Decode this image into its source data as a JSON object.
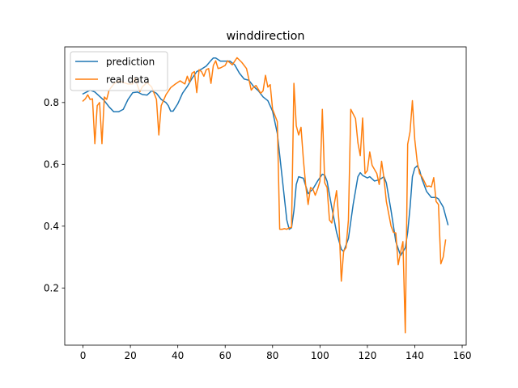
{
  "chart_data": {
    "type": "line",
    "title": "winddirection",
    "xlabel": "",
    "ylabel": "",
    "xlim": [
      -7.7,
      161.7
    ],
    "ylim": [
      0.015,
      0.98
    ],
    "xticks": [
      0,
      20,
      40,
      60,
      80,
      100,
      120,
      140,
      160
    ],
    "yticks": [
      0.2,
      0.4,
      0.6,
      0.8
    ],
    "xtick_labels": [
      "0",
      "20",
      "40",
      "60",
      "80",
      "100",
      "120",
      "140",
      "160"
    ],
    "ytick_labels": [
      "0.2",
      "0.4",
      "0.6",
      "0.8"
    ],
    "grid": false,
    "legend_position": "upper-left",
    "series": [
      {
        "name": "prediction",
        "color": "#1f77b4",
        "points": [
          [
            0,
            0.828
          ],
          [
            3,
            0.84
          ],
          [
            5,
            0.834
          ],
          [
            7,
            0.82
          ],
          [
            9,
            0.806
          ],
          [
            11,
            0.786
          ],
          [
            13,
            0.77
          ],
          [
            15,
            0.77
          ],
          [
            17,
            0.778
          ],
          [
            19,
            0.81
          ],
          [
            21,
            0.832
          ],
          [
            23,
            0.834
          ],
          [
            25,
            0.826
          ],
          [
            27,
            0.824
          ],
          [
            29,
            0.838
          ],
          [
            31,
            0.83
          ],
          [
            33,
            0.81
          ],
          [
            35,
            0.8
          ],
          [
            36,
            0.79
          ],
          [
            37,
            0.772
          ],
          [
            38,
            0.772
          ],
          [
            40,
            0.796
          ],
          [
            42,
            0.83
          ],
          [
            44,
            0.852
          ],
          [
            46,
            0.878
          ],
          [
            48,
            0.9
          ],
          [
            50,
            0.908
          ],
          [
            52,
            0.918
          ],
          [
            54,
            0.936
          ],
          [
            55,
            0.944
          ],
          [
            56,
            0.944
          ],
          [
            58,
            0.934
          ],
          [
            60,
            0.934
          ],
          [
            62,
            0.934
          ],
          [
            64,
            0.922
          ],
          [
            66,
            0.895
          ],
          [
            68,
            0.876
          ],
          [
            70,
            0.872
          ],
          [
            72,
            0.852
          ],
          [
            74,
            0.838
          ],
          [
            76,
            0.818
          ],
          [
            78,
            0.806
          ],
          [
            80,
            0.772
          ],
          [
            82,
            0.7
          ],
          [
            84,
            0.56
          ],
          [
            86,
            0.42
          ],
          [
            87,
            0.39
          ],
          [
            88,
            0.395
          ],
          [
            89,
            0.45
          ],
          [
            90,
            0.535
          ],
          [
            91,
            0.56
          ],
          [
            93,
            0.555
          ],
          [
            95,
            0.505
          ],
          [
            97,
            0.52
          ],
          [
            99,
            0.546
          ],
          [
            101,
            0.568
          ],
          [
            102,
            0.565
          ],
          [
            103,
            0.545
          ],
          [
            105,
            0.46
          ],
          [
            107,
            0.38
          ],
          [
            109,
            0.325
          ],
          [
            110,
            0.318
          ],
          [
            112,
            0.36
          ],
          [
            114,
            0.47
          ],
          [
            116,
            0.56
          ],
          [
            117,
            0.573
          ],
          [
            118,
            0.564
          ],
          [
            120,
            0.556
          ],
          [
            121,
            0.56
          ],
          [
            123,
            0.546
          ],
          [
            125,
            0.55
          ],
          [
            127,
            0.56
          ],
          [
            128,
            0.54
          ],
          [
            130,
            0.45
          ],
          [
            132,
            0.35
          ],
          [
            134,
            0.305
          ],
          [
            136,
            0.33
          ],
          [
            137,
            0.38
          ],
          [
            138,
            0.46
          ],
          [
            139,
            0.56
          ],
          [
            140,
            0.588
          ],
          [
            141,
            0.595
          ],
          [
            142,
            0.582
          ],
          [
            143,
            0.553
          ],
          [
            145,
            0.512
          ],
          [
            147,
            0.493
          ],
          [
            149,
            0.493
          ],
          [
            150,
            0.488
          ],
          [
            152,
            0.462
          ],
          [
            154,
            0.405
          ]
        ]
      },
      {
        "name": "real data",
        "color": "#ff7f0e",
        "points": [
          [
            0,
            0.805
          ],
          [
            1,
            0.812
          ],
          [
            2,
            0.825
          ],
          [
            3,
            0.81
          ],
          [
            4,
            0.812
          ],
          [
            5,
            0.667
          ],
          [
            6,
            0.79
          ],
          [
            7,
            0.8
          ],
          [
            8,
            0.667
          ],
          [
            9,
            0.818
          ],
          [
            10,
            0.81
          ],
          [
            11,
            0.84
          ],
          [
            13,
            0.86
          ],
          [
            15,
            0.87
          ],
          [
            17,
            0.865
          ],
          [
            19,
            0.86
          ],
          [
            21,
            0.86
          ],
          [
            22,
            0.88
          ],
          [
            23,
            0.855
          ],
          [
            24,
            0.835
          ],
          [
            25,
            0.85
          ],
          [
            27,
            0.865
          ],
          [
            29,
            0.85
          ],
          [
            31,
            0.81
          ],
          [
            32,
            0.695
          ],
          [
            33,
            0.79
          ],
          [
            35,
            0.825
          ],
          [
            37,
            0.848
          ],
          [
            39,
            0.86
          ],
          [
            41,
            0.87
          ],
          [
            43,
            0.86
          ],
          [
            44,
            0.885
          ],
          [
            45,
            0.865
          ],
          [
            46,
            0.895
          ],
          [
            47,
            0.9
          ],
          [
            48,
            0.832
          ],
          [
            49,
            0.906
          ],
          [
            50,
            0.9
          ],
          [
            51,
            0.885
          ],
          [
            52,
            0.906
          ],
          [
            53,
            0.91
          ],
          [
            54,
            0.862
          ],
          [
            55,
            0.92
          ],
          [
            56,
            0.935
          ],
          [
            57,
            0.91
          ],
          [
            58,
            0.912
          ],
          [
            60,
            0.92
          ],
          [
            61,
            0.935
          ],
          [
            63,
            0.922
          ],
          [
            65,
            0.945
          ],
          [
            67,
            0.93
          ],
          [
            69,
            0.91
          ],
          [
            70,
            0.875
          ],
          [
            71,
            0.84
          ],
          [
            72,
            0.85
          ],
          [
            73,
            0.855
          ],
          [
            75,
            0.83
          ],
          [
            76,
            0.838
          ],
          [
            77,
            0.888
          ],
          [
            78,
            0.85
          ],
          [
            79,
            0.858
          ],
          [
            80,
            0.778
          ],
          [
            82,
            0.738
          ],
          [
            83,
            0.39
          ],
          [
            84,
            0.39
          ],
          [
            85,
            0.392
          ],
          [
            86,
            0.39
          ],
          [
            87,
            0.395
          ],
          [
            88,
            0.396
          ],
          [
            89,
            0.862
          ],
          [
            90,
            0.725
          ],
          [
            91,
            0.695
          ],
          [
            92,
            0.72
          ],
          [
            93,
            0.615
          ],
          [
            94,
            0.53
          ],
          [
            95,
            0.47
          ],
          [
            96,
            0.525
          ],
          [
            97,
            0.52
          ],
          [
            98,
            0.5
          ],
          [
            99,
            0.52
          ],
          [
            100,
            0.545
          ],
          [
            101,
            0.778
          ],
          [
            102,
            0.54
          ],
          [
            103,
            0.525
          ],
          [
            104,
            0.42
          ],
          [
            105,
            0.41
          ],
          [
            106,
            0.47
          ],
          [
            107,
            0.515
          ],
          [
            108,
            0.415
          ],
          [
            109,
            0.222
          ],
          [
            110,
            0.32
          ],
          [
            111,
            0.33
          ],
          [
            112,
            0.42
          ],
          [
            113,
            0.778
          ],
          [
            115,
            0.748
          ],
          [
            116,
            0.67
          ],
          [
            117,
            0.628
          ],
          [
            118,
            0.75
          ],
          [
            119,
            0.57
          ],
          [
            120,
            0.58
          ],
          [
            121,
            0.64
          ],
          [
            122,
            0.597
          ],
          [
            124,
            0.57
          ],
          [
            125,
            0.535
          ],
          [
            126,
            0.61
          ],
          [
            127,
            0.555
          ],
          [
            128,
            0.48
          ],
          [
            129,
            0.44
          ],
          [
            130,
            0.4
          ],
          [
            131,
            0.38
          ],
          [
            132,
            0.378
          ],
          [
            133,
            0.275
          ],
          [
            134,
            0.315
          ],
          [
            135,
            0.35
          ],
          [
            136,
            0.055
          ],
          [
            137,
            0.665
          ],
          [
            138,
            0.705
          ],
          [
            139,
            0.806
          ],
          [
            140,
            0.68
          ],
          [
            141,
            0.61
          ],
          [
            142,
            0.57
          ],
          [
            143,
            0.56
          ],
          [
            144,
            0.545
          ],
          [
            145,
            0.528
          ],
          [
            146,
            0.53
          ],
          [
            147,
            0.527
          ],
          [
            148,
            0.557
          ],
          [
            149,
            0.48
          ],
          [
            150,
            0.47
          ],
          [
            151,
            0.278
          ],
          [
            152,
            0.3
          ],
          [
            153,
            0.355
          ]
        ]
      }
    ]
  }
}
